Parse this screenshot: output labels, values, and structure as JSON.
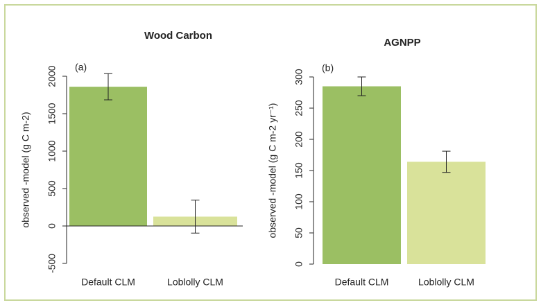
{
  "chart_data": [
    {
      "type": "bar",
      "title": "Wood Carbon",
      "panel_label": "(a)",
      "ylabel": "observed -model (g C m-2)",
      "categories": [
        "Default CLM",
        "Loblolly CLM"
      ],
      "values": [
        1860,
        125
      ],
      "errors": [
        175,
        220
      ],
      "colors": [
        "#9bbf63",
        "#d9e29a"
      ],
      "ylim": [
        -500,
        2000
      ],
      "yticks": [
        -500,
        0,
        500,
        1000,
        1500,
        2000
      ],
      "zero_line": true
    },
    {
      "type": "bar",
      "title": "AGNPP",
      "panel_label": "(b)",
      "ylabel": "observed -model (g C m-2 yr⁻¹)",
      "categories": [
        "Default CLM",
        "Loblolly CLM"
      ],
      "values": [
        285,
        164
      ],
      "errors": [
        15,
        17
      ],
      "colors": [
        "#9bbf63",
        "#d9e29a"
      ],
      "ylim": [
        0,
        300
      ],
      "yticks": [
        0,
        50,
        100,
        150,
        200,
        250,
        300
      ],
      "zero_line": false
    }
  ]
}
